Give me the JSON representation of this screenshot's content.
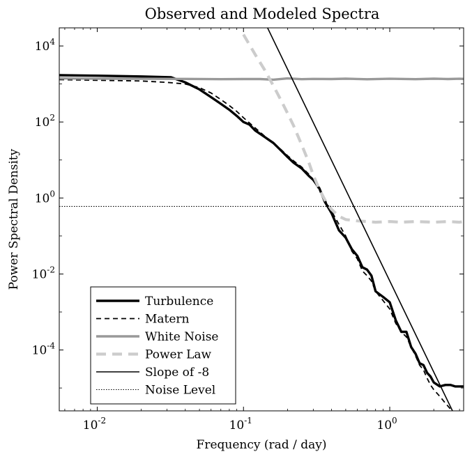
{
  "chart_data": {
    "type": "line",
    "title": "Observed and Modeled Spectra",
    "xlabel": "Frequency (rad / day)",
    "ylabel": "Power Spectral Density",
    "xscale": "log",
    "yscale": "log",
    "xlim": [
      0.0055,
      3.2
    ],
    "ylim": [
      2.5e-06,
      30000.0
    ],
    "x_ticks": [
      {
        "value": 0.01,
        "base": "10",
        "exp": "-2"
      },
      {
        "value": 0.1,
        "base": "10",
        "exp": "-1"
      },
      {
        "value": 1,
        "base": "10",
        "exp": "0"
      }
    ],
    "y_ticks": [
      {
        "value": 0.0001,
        "base": "10",
        "exp": "-4"
      },
      {
        "value": 0.01,
        "base": "10",
        "exp": "-2"
      },
      {
        "value": 1,
        "base": "10",
        "exp": "0"
      },
      {
        "value": 100,
        "base": "10",
        "exp": "2"
      },
      {
        "value": 10000,
        "base": "10",
        "exp": "4"
      }
    ],
    "grid": false,
    "legend_position": "bottom-left",
    "series": [
      {
        "name": "Turbulence",
        "color": "#000000",
        "width": 3.4,
        "dash": "",
        "x": [
          0.0055,
          0.01,
          0.02,
          0.032,
          0.04,
          0.05,
          0.06,
          0.07,
          0.08,
          0.09,
          0.1,
          0.11,
          0.12,
          0.14,
          0.16,
          0.18,
          0.2,
          0.22,
          0.25,
          0.28,
          0.3,
          0.33,
          0.36,
          0.4,
          0.45,
          0.5,
          0.55,
          0.6,
          0.65,
          0.7,
          0.75,
          0.8,
          0.9,
          1.0,
          1.1,
          1.2,
          1.3,
          1.4,
          1.5,
          1.6,
          1.7,
          1.8,
          1.9,
          2.0,
          2.2,
          2.4,
          2.6,
          2.8,
          3.0,
          3.2
        ],
        "y": [
          1700,
          1650,
          1580,
          1500,
          1100,
          720,
          450,
          300,
          210,
          145,
          100,
          85,
          60,
          40,
          28,
          18,
          12,
          8.5,
          6.0,
          3.8,
          3.0,
          1.8,
          0.8,
          0.4,
          0.14,
          0.09,
          0.045,
          0.03,
          0.015,
          0.013,
          0.009,
          0.0035,
          0.0025,
          0.0018,
          0.0006,
          0.0003,
          0.0003,
          0.00012,
          8e-05,
          4.5e-05,
          4e-05,
          2.5e-05,
          2e-05,
          1.4e-05,
          1.1e-05,
          1.2e-05,
          1.2e-05,
          1.1e-05,
          1.1e-05,
          1.1e-05
        ]
      },
      {
        "name": "Matern",
        "color": "#000000",
        "width": 1.8,
        "dash": "7 5",
        "x": [
          0.0055,
          0.01,
          0.02,
          0.03,
          0.04,
          0.05,
          0.06,
          0.07,
          0.08,
          0.09,
          0.1,
          0.12,
          0.14,
          0.16,
          0.18,
          0.2,
          0.22,
          0.25,
          0.28,
          0.3,
          0.33,
          0.36,
          0.4,
          0.45,
          0.5,
          0.55,
          0.6,
          0.65,
          0.7,
          0.75,
          0.8,
          0.9,
          1.0,
          1.1,
          1.2,
          1.3,
          1.4,
          1.5,
          1.6,
          1.7,
          1.8,
          1.9,
          2.0,
          2.2,
          2.4,
          2.6,
          2.8,
          3.0
        ],
        "y": [
          1300,
          1250,
          1200,
          1100,
          1000,
          800,
          580,
          390,
          270,
          190,
          130,
          70,
          42,
          28,
          19,
          13,
          9.5,
          6.5,
          4.2,
          3.0,
          1.6,
          0.9,
          0.45,
          0.2,
          0.1,
          0.04,
          0.025,
          0.012,
          0.009,
          0.0065,
          0.0035,
          0.002,
          0.0012,
          0.0005,
          0.0003,
          0.00022,
          0.00012,
          7e-05,
          4e-05,
          3e-05,
          1.8e-05,
          1.2e-05,
          9e-06,
          6e-06,
          4e-06,
          2.8e-06,
          2e-06,
          1.5e-06
        ]
      },
      {
        "name": "White Noise",
        "color": "#999999",
        "width": 3.4,
        "dash": "",
        "x": [
          0.0055,
          0.01,
          0.02,
          0.04,
          0.07,
          0.1,
          0.13,
          0.16,
          0.2,
          0.25,
          0.3,
          0.4,
          0.5,
          0.7,
          1.0,
          1.5,
          2.0,
          2.5,
          3.0,
          3.2
        ],
        "y": [
          1400,
          1380,
          1370,
          1360,
          1340,
          1350,
          1350,
          1300,
          1400,
          1340,
          1360,
          1350,
          1380,
          1330,
          1370,
          1340,
          1380,
          1350,
          1370,
          1360
        ]
      },
      {
        "name": "Power Law",
        "color": "#cccccc",
        "width": 4.2,
        "dash": "14 9",
        "x": [
          0.1,
          0.12,
          0.14,
          0.16,
          0.18,
          0.2,
          0.22,
          0.25,
          0.28,
          0.3,
          0.33,
          0.36,
          0.4,
          0.45,
          0.5,
          0.6,
          0.7,
          0.8,
          1.0,
          1.2,
          1.5,
          2.0,
          2.5,
          3.0,
          3.2
        ],
        "y": [
          20000,
          6000,
          2300,
          900,
          380,
          170,
          80,
          25,
          8.5,
          4.0,
          1.7,
          0.9,
          0.5,
          0.33,
          0.27,
          0.25,
          0.24,
          0.23,
          0.24,
          0.23,
          0.24,
          0.23,
          0.24,
          0.23,
          0.24
        ]
      },
      {
        "name": "Slope of -8",
        "color": "#000000",
        "width": 1.6,
        "dash": "",
        "x": [
          0.14,
          2.7
        ],
        "y": [
          42000,
          2.4e-06
        ]
      },
      {
        "name": "Noise Level",
        "color": "#000000",
        "width": 1.1,
        "dash": "1.5 2",
        "x": [
          0.0055,
          3.2
        ],
        "y": [
          0.6,
          0.6
        ]
      }
    ]
  }
}
